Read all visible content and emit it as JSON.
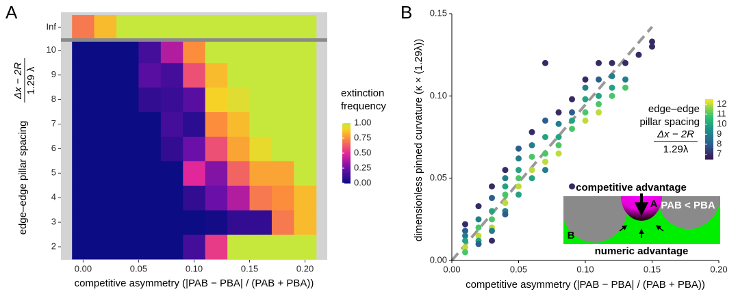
{
  "chart_data": [
    {
      "type": "heatmap",
      "panel": "A",
      "xlabel": "competitive asymmetry (|PAB − PBA| / (PAB + PBA))",
      "ylabel": "edge–edge pillar spacing",
      "ylabel_numerator": "Δx − 2R",
      "ylabel_denominator": "1.29 λ",
      "x": [
        0,
        0.02,
        0.04,
        0.06,
        0.08,
        0.1,
        0.12,
        0.14,
        0.16,
        0.18,
        0.2
      ],
      "y_categories": [
        "2",
        "3",
        "4",
        "5",
        "6",
        "7",
        "8",
        "9",
        "10",
        "Inf"
      ],
      "values": [
        [
          0,
          0,
          0,
          0,
          0,
          0.15,
          0.55,
          1,
          1,
          1,
          1
        ],
        [
          0,
          0,
          0,
          0,
          0,
          0,
          0.02,
          0.1,
          0.1,
          0.7,
          0.85
        ],
        [
          0,
          0,
          0,
          0,
          0,
          0.1,
          0.25,
          0.4,
          0.7,
          0.75,
          0.85
        ],
        [
          0,
          0,
          0,
          0,
          0,
          0.5,
          0.3,
          0.65,
          0.8,
          0.8,
          1
        ],
        [
          0,
          0,
          0,
          0,
          0.1,
          0.25,
          0.6,
          0.8,
          0.93,
          1,
          1
        ],
        [
          0,
          0,
          0,
          0,
          0.15,
          0.08,
          0.75,
          0.85,
          1,
          1,
          1
        ],
        [
          0,
          0,
          0,
          0.1,
          0.12,
          0.2,
          0.9,
          0.95,
          1,
          1,
          1
        ],
        [
          0,
          0,
          0,
          0.2,
          0.15,
          0.6,
          0.85,
          1,
          1,
          1,
          1
        ],
        [
          0,
          0,
          0,
          0.15,
          0.4,
          0.75,
          1,
          1,
          1,
          1,
          1
        ],
        [
          0.7,
          0.85,
          1,
          1,
          1,
          1,
          1,
          1,
          1,
          1,
          1
        ]
      ],
      "xlim": [
        -0.02,
        0.22
      ],
      "xticks": [
        {
          "value": 0,
          "label": "0.00"
        },
        {
          "value": 0.05,
          "label": "0.05"
        },
        {
          "value": 0.1,
          "label": "0.10"
        },
        {
          "value": 0.15,
          "label": "0.15"
        },
        {
          "value": 0.2,
          "label": "0.20"
        }
      ],
      "colorbar_title": [
        "extinction",
        "frequency"
      ],
      "clim": [
        0,
        1
      ],
      "cticks": [
        {
          "value": 0,
          "label": "0.00"
        },
        {
          "value": 0.25,
          "label": "0.25"
        },
        {
          "value": 0.5,
          "label": "0.50"
        },
        {
          "value": 0.75,
          "label": "0.75"
        },
        {
          "value": 1,
          "label": "1.00"
        }
      ],
      "colorscale": [
        [
          0,
          "#0c0c84"
        ],
        [
          0.25,
          "#6a0fa8"
        ],
        [
          0.5,
          "#e2279a"
        ],
        [
          0.75,
          "#fb8d3c"
        ],
        [
          0.9,
          "#f7d226"
        ],
        [
          1,
          "#c6e83c"
        ]
      ]
    },
    {
      "type": "scatter",
      "panel": "B",
      "xlabel": "competitive asymmetry (|PAB − PBA| / (PAB + PBA))",
      "ylabel": "dimensionless pinned curvature (κ × (1.29λ))",
      "x": [
        0.01,
        0.01,
        0.01,
        0.01,
        0.01,
        0.01,
        0.02,
        0.02,
        0.02,
        0.02,
        0.02,
        0.02,
        0.03,
        0.03,
        0.03,
        0.03,
        0.03,
        0.03,
        0.03,
        0.04,
        0.04,
        0.04,
        0.04,
        0.04,
        0.04,
        0.04,
        0.05,
        0.05,
        0.05,
        0.05,
        0.05,
        0.05,
        0.06,
        0.06,
        0.06,
        0.06,
        0.06,
        0.07,
        0.07,
        0.07,
        0.07,
        0.07,
        0.07,
        0.08,
        0.08,
        0.08,
        0.08,
        0.08,
        0.09,
        0.09,
        0.09,
        0.09,
        0.09,
        0.1,
        0.1,
        0.1,
        0.1,
        0.1,
        0.11,
        0.11,
        0.11,
        0.11,
        0.11,
        0.12,
        0.12,
        0.12,
        0.12,
        0.13,
        0.13,
        0.13,
        0.14,
        0.15,
        0.15
      ],
      "y": [
        0.022,
        0.018,
        0.015,
        0.012,
        0.008,
        0.005,
        0.033,
        0.025,
        0.02,
        0.015,
        0.012,
        0.01,
        0.045,
        0.038,
        0.03,
        0.025,
        0.02,
        0.018,
        0.012,
        0.055,
        0.05,
        0.045,
        0.04,
        0.035,
        0.03,
        0.028,
        0.068,
        0.062,
        0.055,
        0.05,
        0.045,
        0.04,
        0.078,
        0.07,
        0.063,
        0.055,
        0.05,
        0.12,
        0.085,
        0.075,
        0.065,
        0.06,
        0.055,
        0.09,
        0.083,
        0.075,
        0.07,
        0.065,
        0.098,
        0.09,
        0.085,
        0.08,
        0.045,
        0.11,
        0.105,
        0.098,
        0.09,
        0.085,
        0.12,
        0.11,
        0.1,
        0.095,
        0.09,
        0.12,
        0.112,
        0.105,
        0.1,
        0.12,
        0.11,
        0.105,
        0.125,
        0.13,
        0.133
      ],
      "spacing": [
        7,
        8,
        9,
        10,
        12,
        11,
        7,
        9,
        11,
        12,
        10,
        8,
        7,
        8,
        10,
        11,
        12,
        9,
        7,
        7,
        9,
        10,
        11,
        12,
        9,
        8,
        8,
        9,
        10,
        11,
        12,
        10,
        7,
        9,
        11,
        12,
        10,
        7,
        8,
        10,
        11,
        12,
        9,
        7,
        9,
        10,
        11,
        12,
        7,
        8,
        10,
        11,
        7,
        7,
        9,
        10,
        11,
        12,
        7,
        8,
        10,
        11,
        12,
        7,
        9,
        10,
        11,
        7,
        9,
        11,
        7,
        7,
        7
      ],
      "reference_line": {
        "x": [
          0,
          0.15
        ],
        "y": [
          0,
          0.142
        ],
        "color": "#999999"
      },
      "xlim": [
        0,
        0.2
      ],
      "ylim": [
        0,
        0.15
      ],
      "xticks": [
        {
          "value": 0,
          "label": "0.00"
        },
        {
          "value": 0.05,
          "label": "0.05"
        },
        {
          "value": 0.1,
          "label": "0.10"
        },
        {
          "value": 0.15,
          "label": "0.15"
        },
        {
          "value": 0.2,
          "label": "0.20"
        }
      ],
      "yticks": [
        {
          "value": 0,
          "label": "0.00"
        },
        {
          "value": 0.05,
          "label": "0.05"
        },
        {
          "value": 0.1,
          "label": "0.10"
        },
        {
          "value": 0.15,
          "label": "0.15"
        }
      ],
      "colorbar_title": [
        "edge–edge",
        "pillar spacing"
      ],
      "colorbar_numerator": "Δx − 2R",
      "colorbar_denominator": "1.29λ",
      "clim": [
        6.5,
        12.5
      ],
      "cticks": [
        7,
        8,
        9,
        10,
        11,
        12
      ],
      "colorscale": [
        [
          0,
          "#3b1250"
        ],
        [
          0.25,
          "#2c5d8f"
        ],
        [
          0.5,
          "#1f8f8b"
        ],
        [
          0.7,
          "#2cbf74"
        ],
        [
          0.85,
          "#8ad44a"
        ],
        [
          1,
          "#fde725"
        ]
      ],
      "inset": {
        "top": "competitive advantage",
        "a": "A",
        "ratio": "PAB < PBA",
        "b": "B",
        "bottom": "numeric advantage"
      }
    }
  ]
}
